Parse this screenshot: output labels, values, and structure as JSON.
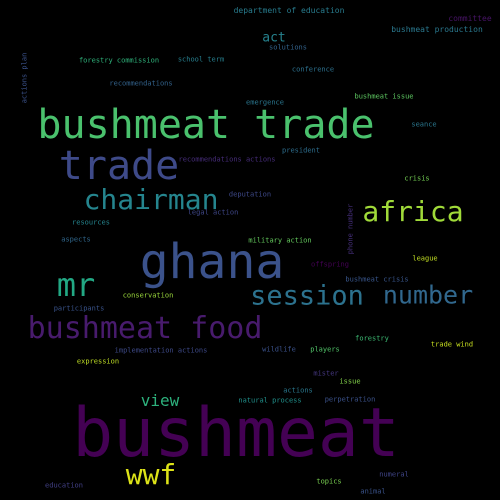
{
  "words": [
    {
      "text": "bushmeat",
      "color": "#440154"
    },
    {
      "text": "ghana",
      "color": "#3b528b"
    },
    {
      "text": "bushmeat trade",
      "color": "#4ac16d"
    },
    {
      "text": "trade",
      "color": "#3e4a89"
    },
    {
      "text": "bushmeat food",
      "color": "#481b6d"
    },
    {
      "text": "chairman",
      "color": "#25858e"
    },
    {
      "text": "africa",
      "color": "#a0da39"
    },
    {
      "text": "session",
      "color": "#2c728e"
    },
    {
      "text": "number",
      "color": "#31688e"
    },
    {
      "text": "mr",
      "color": "#22a884"
    },
    {
      "text": "wwf",
      "color": "#dde318"
    },
    {
      "text": "view",
      "color": "#2db27d"
    },
    {
      "text": "act",
      "color": "#26828e"
    },
    {
      "text": "department of education",
      "color": "#287c8e"
    },
    {
      "text": "committee",
      "color": "#481467"
    },
    {
      "text": "bushmeat production",
      "color": "#2a788e"
    },
    {
      "text": "solutions",
      "color": "#33638d"
    },
    {
      "text": "forestry commission",
      "color": "#2fb47c"
    },
    {
      "text": "school term",
      "color": "#277f8e"
    },
    {
      "text": "conference",
      "color": "#2d718e"
    },
    {
      "text": "actions plan",
      "color": "#3b528b"
    },
    {
      "text": "recommendations",
      "color": "#33638d"
    },
    {
      "text": "emergence",
      "color": "#2a768e"
    },
    {
      "text": "bushmeat issue",
      "color": "#5ec962"
    },
    {
      "text": "seance",
      "color": "#2a778e"
    },
    {
      "text": "president",
      "color": "#2e6e8e"
    },
    {
      "text": "recommendations actions",
      "color": "#472d7b"
    },
    {
      "text": "crisis",
      "color": "#75d054"
    },
    {
      "text": "deputation",
      "color": "#3e4989"
    },
    {
      "text": "resources",
      "color": "#25858e"
    },
    {
      "text": "legal action",
      "color": "#3f4788"
    },
    {
      "text": "phone number",
      "color": "#462f7c"
    },
    {
      "text": "aspects",
      "color": "#31688e"
    },
    {
      "text": "military action",
      "color": "#65cb5e"
    },
    {
      "text": "league",
      "color": "#c2df23"
    },
    {
      "text": "offspring",
      "color": "#440154"
    },
    {
      "text": "bushmeat crisis",
      "color": "#39568c"
    },
    {
      "text": "conservation",
      "color": "#9bd93c"
    },
    {
      "text": "participants",
      "color": "#3a548c"
    },
    {
      "text": "forestry",
      "color": "#3dbc74"
    },
    {
      "text": "trade wind",
      "color": "#c8e020"
    },
    {
      "text": "implementation actions",
      "color": "#3e4a89"
    },
    {
      "text": "wildlife",
      "color": "#3b528b"
    },
    {
      "text": "players",
      "color": "#52c569"
    },
    {
      "text": "expression",
      "color": "#c0df25"
    },
    {
      "text": "mister",
      "color": "#453781"
    },
    {
      "text": "issue",
      "color": "#84d44b"
    },
    {
      "text": "actions",
      "color": "#2a788e"
    },
    {
      "text": "natural process",
      "color": "#21918c"
    },
    {
      "text": "perpetration",
      "color": "#3b528b"
    },
    {
      "text": "numeral",
      "color": "#404588"
    },
    {
      "text": "education",
      "color": "#424086"
    },
    {
      "text": "topics",
      "color": "#7ad151"
    },
    {
      "text": "animal",
      "color": "#3a538b"
    }
  ]
}
